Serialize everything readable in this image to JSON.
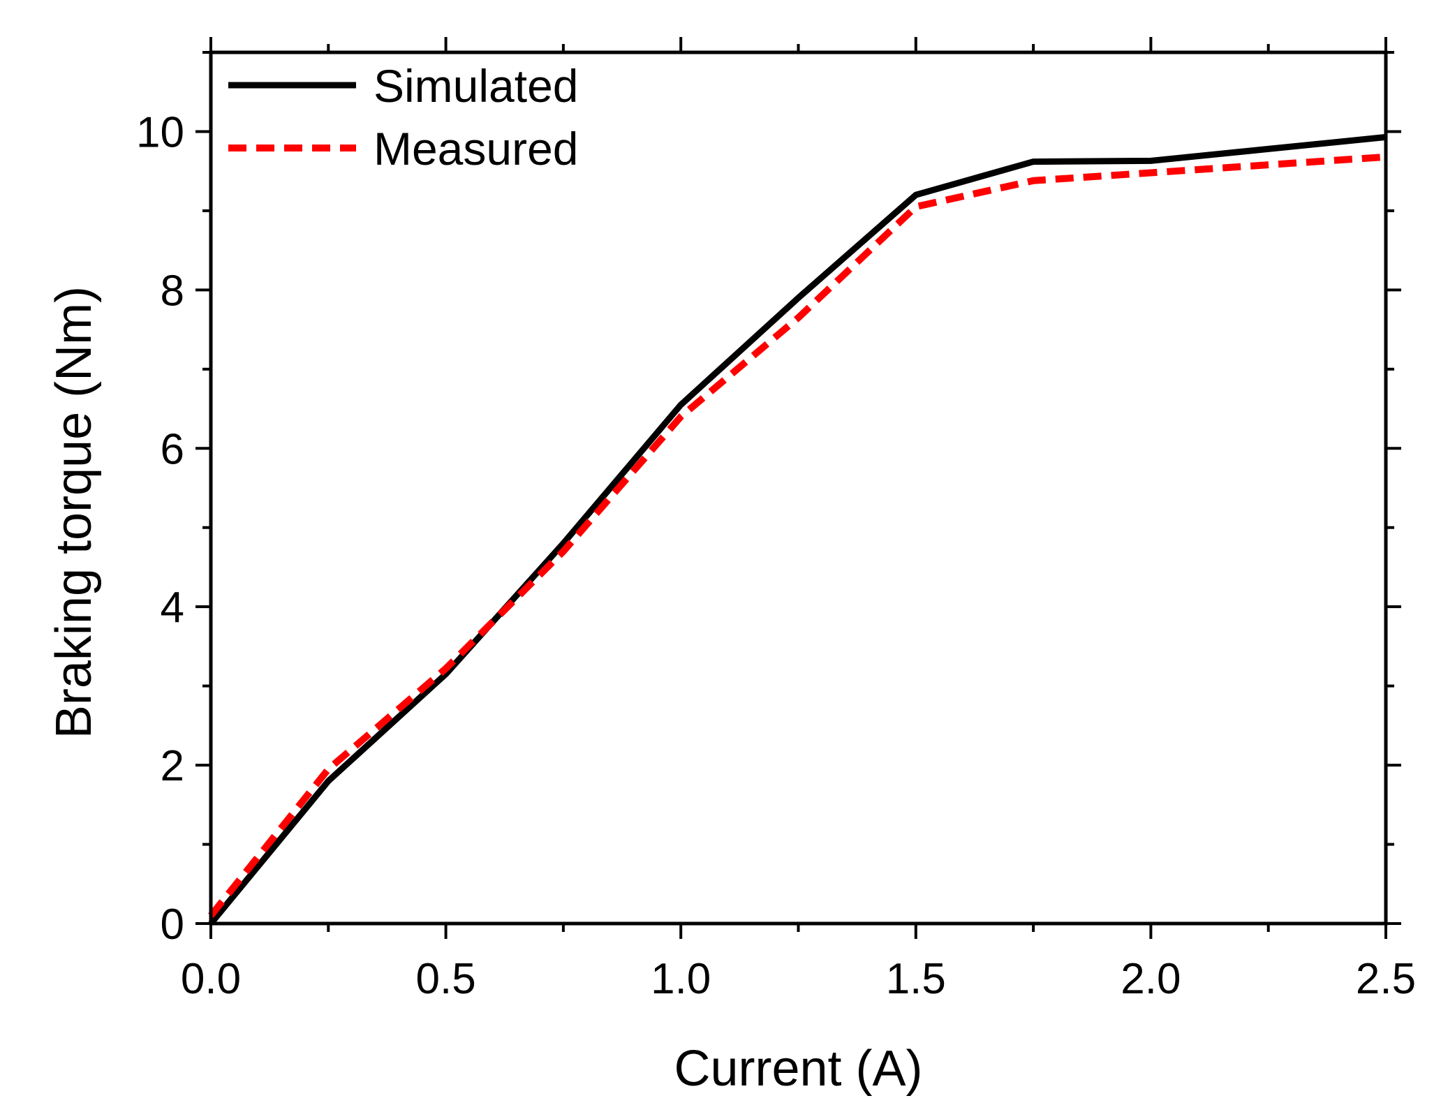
{
  "chart_data": {
    "type": "line",
    "title": "",
    "xlabel": "Current (A)",
    "ylabel": "Braking torque (Nm)",
    "xlim": [
      0.0,
      2.5
    ],
    "ylim": [
      0,
      11
    ],
    "x_ticks": [
      "0.0",
      "0.5",
      "1.0",
      "1.5",
      "2.0",
      "2.5"
    ],
    "x_tick_values": [
      0.0,
      0.5,
      1.0,
      1.5,
      2.0,
      2.5
    ],
    "y_ticks": [
      "0",
      "2",
      "4",
      "6",
      "8",
      "10"
    ],
    "y_tick_values": [
      0,
      2,
      4,
      6,
      8,
      10
    ],
    "grid": false,
    "legend_position": "top-left",
    "series": [
      {
        "name": "Simulated",
        "color": "#000000",
        "style": "solid",
        "x": [
          0.0,
          0.25,
          0.5,
          0.75,
          1.0,
          1.25,
          1.5,
          1.75,
          2.0,
          2.25,
          2.5
        ],
        "values": [
          0.0,
          1.8,
          3.15,
          4.8,
          6.55,
          7.9,
          9.2,
          9.62,
          9.63,
          9.78,
          9.93
        ]
      },
      {
        "name": "Measured",
        "color": "#ff0000",
        "style": "dashed",
        "x": [
          0.0,
          0.25,
          0.5,
          0.75,
          1.0,
          1.25,
          1.5,
          1.75,
          2.0,
          2.25,
          2.5
        ],
        "values": [
          0.1,
          1.95,
          3.22,
          4.7,
          6.4,
          7.65,
          9.05,
          9.38,
          9.48,
          9.58,
          9.68
        ]
      }
    ]
  }
}
